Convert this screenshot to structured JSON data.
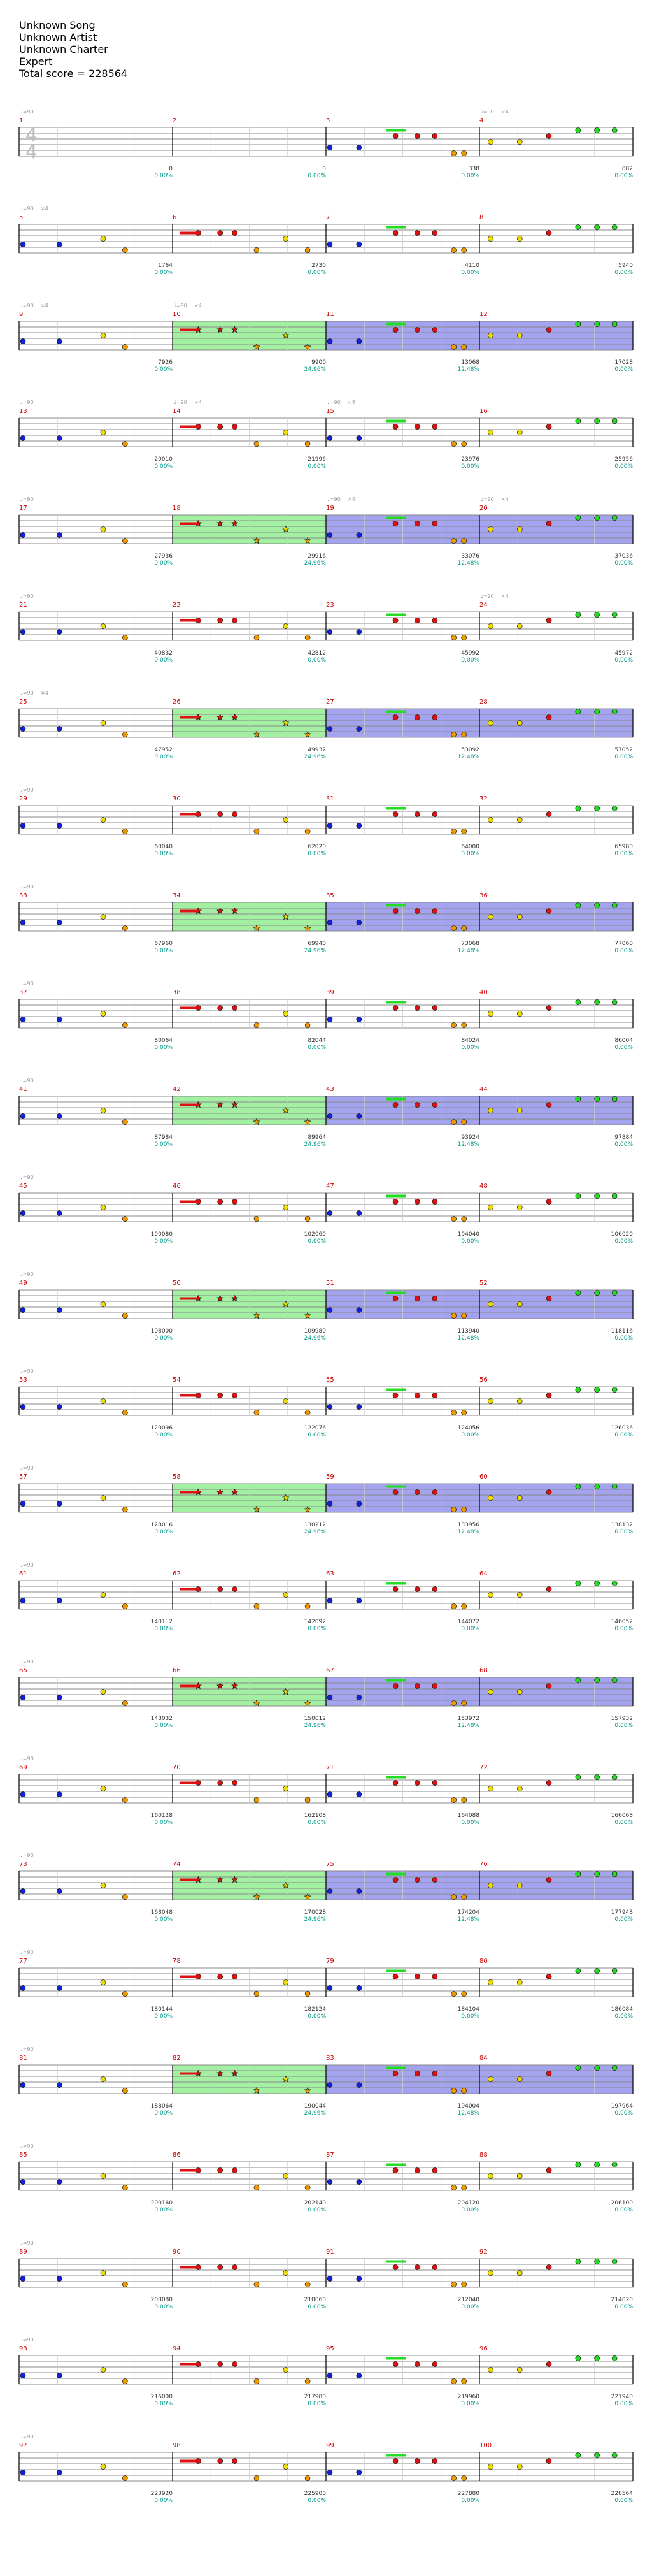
{
  "song": {
    "title": "Unknown Song",
    "artist": "Unknown Artist",
    "charter": "Unknown Charter",
    "difficulty": "Expert",
    "total_score_label": "Total score = 228564"
  },
  "time_signature": {
    "top": "4",
    "bottom": "4"
  },
  "tempo_label": "♩=90",
  "colors": {
    "green": "#22dd22",
    "red": "#dd1111",
    "yellow": "#eedd00",
    "blue": "#1122dd",
    "orange": "#ee9900",
    "star_power": "#99ee99",
    "solo": "#9999ee"
  },
  "measures": [
    {
      "n": "1",
      "score": "",
      "pct": "",
      "count": ""
    },
    {
      "n": "2",
      "score": "0",
      "pct": "0.00%",
      "count": ""
    },
    {
      "n": "3",
      "score": "0",
      "pct": "0.00%",
      "count": ""
    },
    {
      "n": "4",
      "score": "338",
      "pct": "0.00%",
      "count": "×4"
    },
    {
      "n": "5",
      "score": "882",
      "pct": "0.00%",
      "count": "×4"
    },
    {
      "n": "6",
      "score": "1764",
      "pct": "0.00%",
      "count": ""
    },
    {
      "n": "7",
      "score": "2730",
      "pct": "0.00%",
      "count": ""
    },
    {
      "n": "8",
      "score": "4110",
      "pct": "0.00%",
      "count": ""
    },
    {
      "n": "9",
      "score": "5940",
      "pct": "0.00%",
      "count": "×4"
    },
    {
      "n": "10",
      "score": "7926",
      "pct": "0.00%",
      "count": "×4"
    },
    {
      "n": "11",
      "score": "9900",
      "pct": "24.96%",
      "count": ""
    },
    {
      "n": "12",
      "score": "13068",
      "pct": "12.48%",
      "count": ""
    },
    {
      "n": "13",
      "score": "17028",
      "pct": "0.00%",
      "count": ""
    },
    {
      "n": "14",
      "score": "20010",
      "pct": "0.00%",
      "count": "×4"
    },
    {
      "n": "15",
      "score": "21996",
      "pct": "0.00%",
      "count": "×4"
    },
    {
      "n": "16",
      "score": "23976",
      "pct": "0.00%",
      "count": ""
    },
    {
      "n": "17",
      "score": "25956",
      "pct": "0.00%",
      "count": ""
    },
    {
      "n": "18",
      "score": "27936",
      "pct": "0.00%",
      "count": ""
    },
    {
      "n": "19",
      "score": "29916",
      "pct": "24.96%",
      "count": "×4"
    },
    {
      "n": "20",
      "score": "33076",
      "pct": "12.48%",
      "count": "×4"
    },
    {
      "n": "21",
      "score": "37036",
      "pct": "0.00%",
      "count": ""
    },
    {
      "n": "22",
      "score": "40832",
      "pct": "0.00%",
      "count": ""
    },
    {
      "n": "23",
      "score": "42812",
      "pct": "0.00%",
      "count": ""
    },
    {
      "n": "24",
      "score": "45992",
      "pct": "0.00%",
      "count": "×4"
    },
    {
      "n": "25",
      "score": "45972",
      "pct": "0.00%",
      "count": "×4"
    },
    {
      "n": "26",
      "score": "47952",
      "pct": "0.00%",
      "count": ""
    },
    {
      "n": "27",
      "score": "49932",
      "pct": "24.96%",
      "count": ""
    },
    {
      "n": "28",
      "score": "53092",
      "pct": "12.48%",
      "count": ""
    },
    {
      "n": "29",
      "score": "57052",
      "pct": "0.00%",
      "count": ""
    },
    {
      "n": "30",
      "score": "60040",
      "pct": "0.00%",
      "count": ""
    },
    {
      "n": "31",
      "score": "62020",
      "pct": "0.00%",
      "count": ""
    },
    {
      "n": "32",
      "score": "64000",
      "pct": "0.00%",
      "count": ""
    },
    {
      "n": "33",
      "score": "65980",
      "pct": "0.00%",
      "count": ""
    },
    {
      "n": "34",
      "score": "67960",
      "pct": "0.00%",
      "count": ""
    },
    {
      "n": "35",
      "score": "69940",
      "pct": "24.96%",
      "count": ""
    },
    {
      "n": "36",
      "score": "73068",
      "pct": "12.48%",
      "count": ""
    },
    {
      "n": "37",
      "score": "77060",
      "pct": "0.00%",
      "count": ""
    },
    {
      "n": "38",
      "score": "80064",
      "pct": "0.00%",
      "count": ""
    },
    {
      "n": "39",
      "score": "82044",
      "pct": "0.00%",
      "count": ""
    },
    {
      "n": "40",
      "score": "84024",
      "pct": "0.00%",
      "count": ""
    },
    {
      "n": "41",
      "score": "86004",
      "pct": "0.00%",
      "count": ""
    },
    {
      "n": "42",
      "score": "87984",
      "pct": "0.00%",
      "count": ""
    },
    {
      "n": "43",
      "score": "89964",
      "pct": "24.96%",
      "count": ""
    },
    {
      "n": "44",
      "score": "93924",
      "pct": "12.48%",
      "count": ""
    },
    {
      "n": "45",
      "score": "97884",
      "pct": "0.00%",
      "count": ""
    },
    {
      "n": "46",
      "score": "100080",
      "pct": "0.00%",
      "count": ""
    },
    {
      "n": "47",
      "score": "102060",
      "pct": "0.00%",
      "count": ""
    },
    {
      "n": "48",
      "score": "104040",
      "pct": "0.00%",
      "count": ""
    },
    {
      "n": "49",
      "score": "106020",
      "pct": "0.00%",
      "count": ""
    },
    {
      "n": "50",
      "score": "108000",
      "pct": "0.00%",
      "count": ""
    },
    {
      "n": "51",
      "score": "109980",
      "pct": "24.96%",
      "count": ""
    },
    {
      "n": "52",
      "score": "113940",
      "pct": "12.48%",
      "count": ""
    },
    {
      "n": "53",
      "score": "118116",
      "pct": "0.00%",
      "count": ""
    },
    {
      "n": "54",
      "score": "120096",
      "pct": "0.00%",
      "count": ""
    },
    {
      "n": "55",
      "score": "122076",
      "pct": "0.00%",
      "count": ""
    },
    {
      "n": "56",
      "score": "124056",
      "pct": "0.00%",
      "count": ""
    },
    {
      "n": "57",
      "score": "126036",
      "pct": "0.00%",
      "count": ""
    },
    {
      "n": "58",
      "score": "128016",
      "pct": "0.00%",
      "count": ""
    },
    {
      "n": "59",
      "score": "130212",
      "pct": "24.96%",
      "count": ""
    },
    {
      "n": "60",
      "score": "133956",
      "pct": "12.48%",
      "count": ""
    },
    {
      "n": "61",
      "score": "138132",
      "pct": "0.00%",
      "count": ""
    },
    {
      "n": "62",
      "score": "140112",
      "pct": "0.00%",
      "count": ""
    },
    {
      "n": "63",
      "score": "142092",
      "pct": "0.00%",
      "count": ""
    },
    {
      "n": "64",
      "score": "144072",
      "pct": "0.00%",
      "count": ""
    },
    {
      "n": "65",
      "score": "146052",
      "pct": "0.00%",
      "count": ""
    },
    {
      "n": "66",
      "score": "148032",
      "pct": "0.00%",
      "count": ""
    },
    {
      "n": "67",
      "score": "150012",
      "pct": "24.96%",
      "count": ""
    },
    {
      "n": "68",
      "score": "153972",
      "pct": "12.48%",
      "count": ""
    },
    {
      "n": "69",
      "score": "157932",
      "pct": "0.00%",
      "count": ""
    },
    {
      "n": "70",
      "score": "160128",
      "pct": "0.00%",
      "count": ""
    },
    {
      "n": "71",
      "score": "162108",
      "pct": "0.00%",
      "count": ""
    },
    {
      "n": "72",
      "score": "164088",
      "pct": "0.00%",
      "count": ""
    },
    {
      "n": "73",
      "score": "166068",
      "pct": "0.00%",
      "count": ""
    },
    {
      "n": "74",
      "score": "168048",
      "pct": "0.00%",
      "count": ""
    },
    {
      "n": "75",
      "score": "170028",
      "pct": "24.96%",
      "count": ""
    },
    {
      "n": "76",
      "score": "174204",
      "pct": "12.48%",
      "count": ""
    },
    {
      "n": "77",
      "score": "177948",
      "pct": "0.00%",
      "count": ""
    },
    {
      "n": "78",
      "score": "180144",
      "pct": "0.00%",
      "count": ""
    },
    {
      "n": "79",
      "score": "182124",
      "pct": "0.00%",
      "count": ""
    },
    {
      "n": "80",
      "score": "184104",
      "pct": "0.00%",
      "count": ""
    },
    {
      "n": "81",
      "score": "186084",
      "pct": "0.00%",
      "count": ""
    },
    {
      "n": "82",
      "score": "188064",
      "pct": "0.00%",
      "count": ""
    },
    {
      "n": "83",
      "score": "190044",
      "pct": "24.96%",
      "count": ""
    },
    {
      "n": "84",
      "score": "194004",
      "pct": "12.48%",
      "count": ""
    },
    {
      "n": "85",
      "score": "197964",
      "pct": "0.00%",
      "count": ""
    },
    {
      "n": "86",
      "score": "200160",
      "pct": "0.00%",
      "count": ""
    },
    {
      "n": "87",
      "score": "202140",
      "pct": "0.00%",
      "count": ""
    },
    {
      "n": "88",
      "score": "204120",
      "pct": "0.00%",
      "count": ""
    },
    {
      "n": "89",
      "score": "206100",
      "pct": "0.00%",
      "count": ""
    },
    {
      "n": "90",
      "score": "208080",
      "pct": "0.00%",
      "count": ""
    },
    {
      "n": "91",
      "score": "210060",
      "pct": "0.00%",
      "count": ""
    },
    {
      "n": "92",
      "score": "212040",
      "pct": "0.00%",
      "count": ""
    },
    {
      "n": "93",
      "score": "214020",
      "pct": "0.00%",
      "count": ""
    },
    {
      "n": "94",
      "score": "216000",
      "pct": "0.00%",
      "count": ""
    },
    {
      "n": "95",
      "score": "217980",
      "pct": "0.00%",
      "count": ""
    },
    {
      "n": "96",
      "score": "219960",
      "pct": "0.00%",
      "count": ""
    },
    {
      "n": "97",
      "score": "221940",
      "pct": "0.00%",
      "count": ""
    },
    {
      "n": "98",
      "score": "223920",
      "pct": "0.00%",
      "count": ""
    },
    {
      "n": "99",
      "score": "225900",
      "pct": "0.00%",
      "count": ""
    },
    {
      "n": "100",
      "score": "227880",
      "pct": "0.00%",
      "count": ""
    },
    {
      "n": "",
      "score": "228564",
      "pct": "0.00%",
      "count": ""
    }
  ]
}
